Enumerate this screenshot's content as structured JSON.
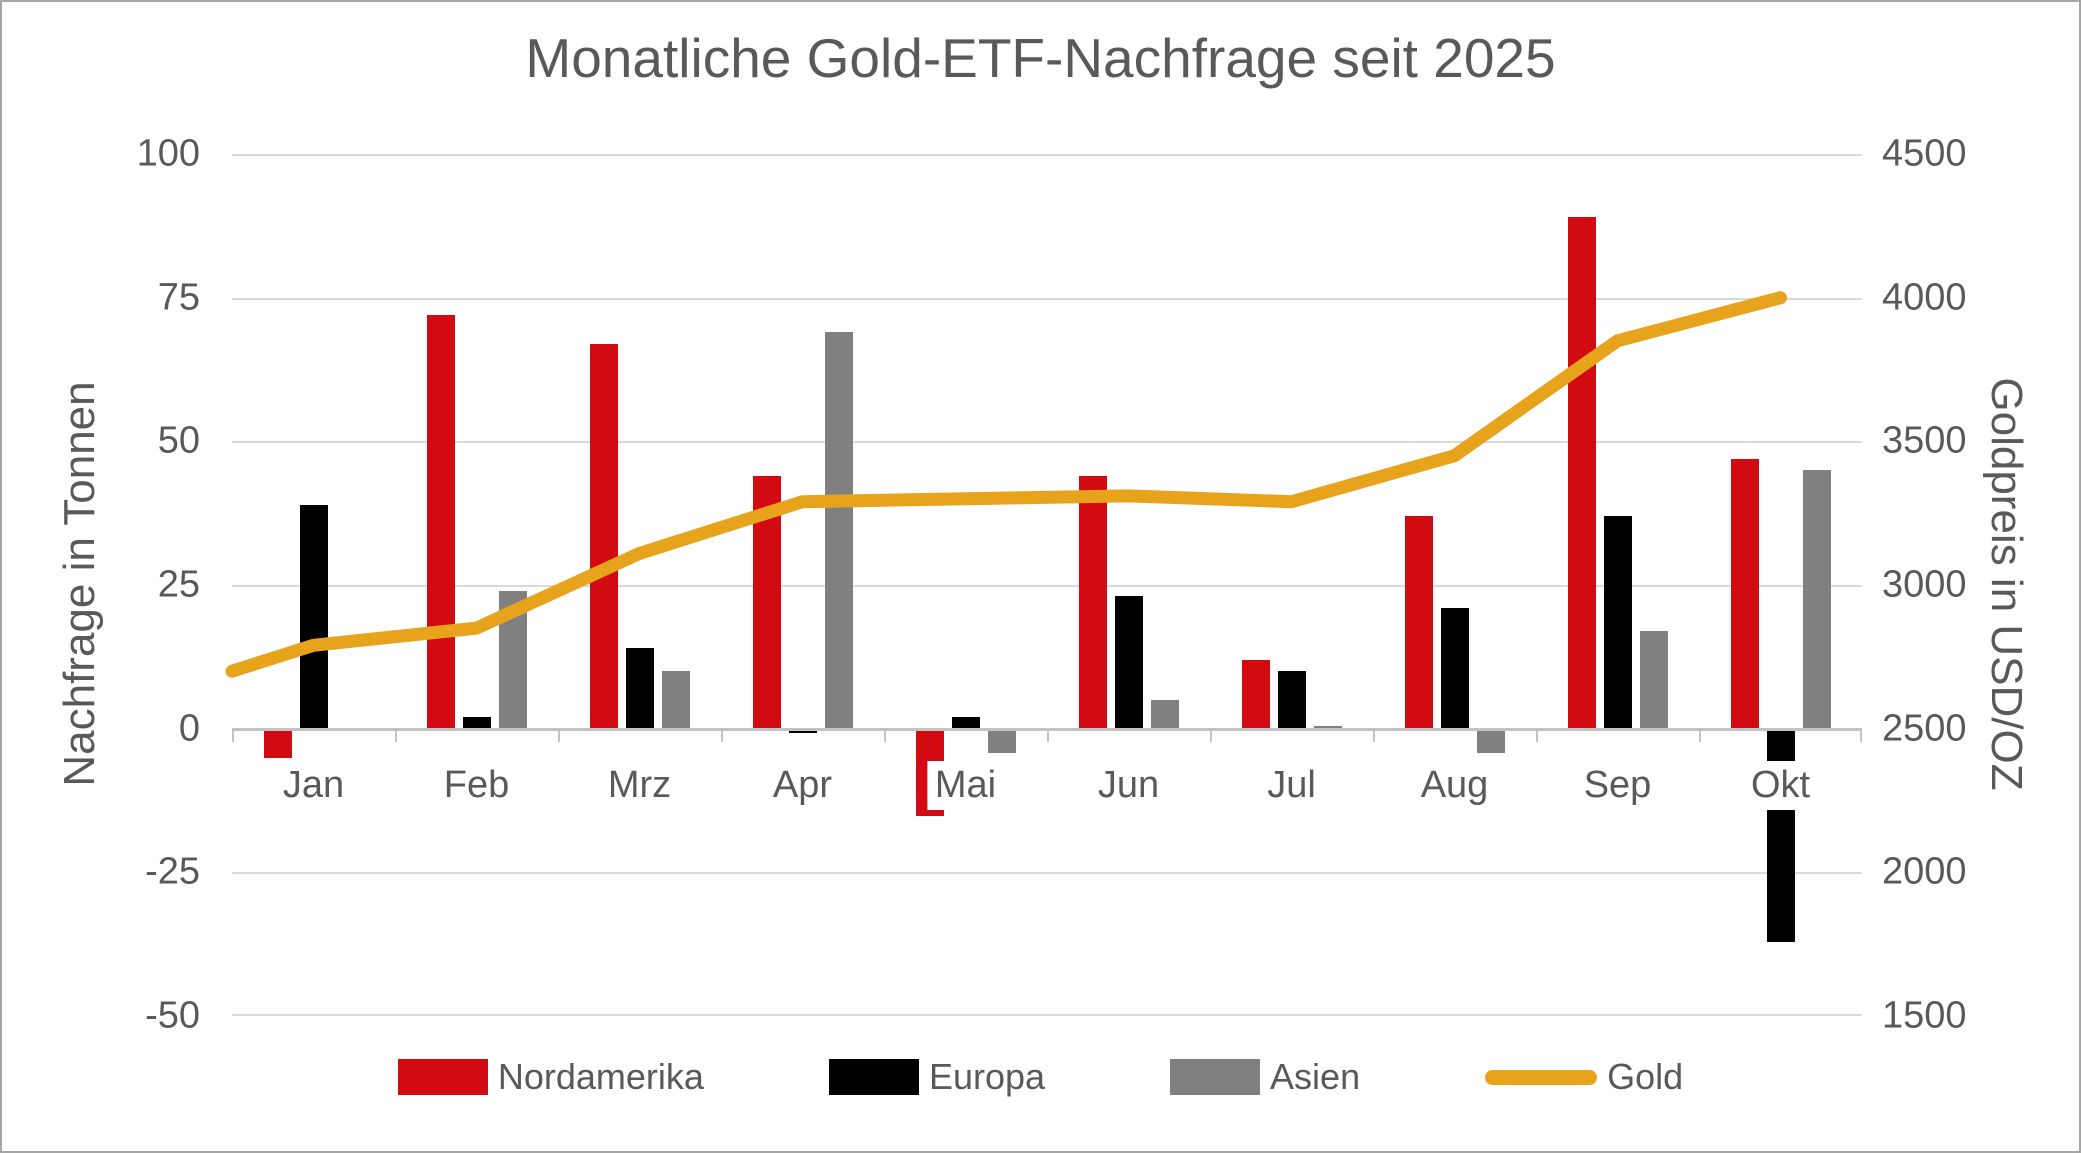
{
  "title": "Monatliche Gold-ETF-Nachfrage seit 2025",
  "chart_data": {
    "type": "combo-bar-line",
    "title": "Monatliche Gold-ETF-Nachfrage seit 2025",
    "categories": [
      "Jan",
      "Feb",
      "Mrz",
      "Apr",
      "Mai",
      "Jun",
      "Jul",
      "Aug",
      "Sep",
      "Okt"
    ],
    "bar_series": [
      {
        "name": "Nordamerika",
        "axis": "left",
        "color_key": "nordamerika",
        "values": [
          -5,
          72,
          67,
          44,
          -15,
          44,
          12,
          37,
          89,
          47
        ]
      },
      {
        "name": "Europa",
        "axis": "left",
        "color_key": "europa",
        "values": [
          39,
          2,
          14,
          -0.5,
          2,
          23,
          10,
          21,
          37,
          -37
        ]
      },
      {
        "name": "Asien",
        "axis": "left",
        "color_key": "asien",
        "values": [
          0,
          24,
          10,
          69,
          -4,
          5,
          0.5,
          -4,
          17,
          45
        ]
      }
    ],
    "line_series": {
      "name": "Gold",
      "axis": "right",
      "color_key": "gold",
      "edge_start_value": 2700,
      "values": [
        2790,
        2850,
        3110,
        3290,
        3300,
        3310,
        3290,
        3450,
        3850,
        4000
      ]
    },
    "left_axis": {
      "title": "Nachfrage in Tonnen",
      "min": -50,
      "max": 100,
      "ticks": [
        100,
        75,
        50,
        25,
        0,
        -25,
        -50
      ]
    },
    "right_axis": {
      "title": "Goldpreis in USD/OZ",
      "min": 1500,
      "max": 4500,
      "ticks": [
        4500,
        4000,
        3500,
        3000,
        2500,
        2000,
        1500
      ]
    },
    "legend": {
      "position": "bottom",
      "labels": [
        "Nordamerika",
        "Europa",
        "Asien",
        "Gold"
      ]
    },
    "grid": "horizontal-on"
  },
  "colors": {
    "nordamerika": "#d20a11",
    "europa": "#000000",
    "asien": "#808080",
    "gold": "#e8a31d",
    "text": "#595959",
    "gridline": "#d9d9d9",
    "axis_line": "#c2c2c2",
    "background": "#ffffff",
    "border": "#a6a6a6"
  }
}
